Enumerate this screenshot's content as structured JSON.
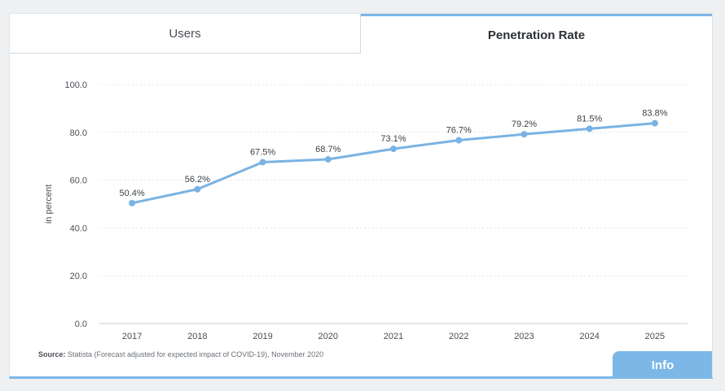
{
  "tabs": {
    "users_label": "Users",
    "penetration_label": "Penetration Rate"
  },
  "source": {
    "label": "Source:",
    "text": " Statista (Forecast adjusted for expected impact of COVID-19), November 2020"
  },
  "info_label": "Info",
  "colors": {
    "accent": "#7cb7e8",
    "line": "#7ab3e3",
    "grid": "#e3e6ea",
    "axis": "#c9ced4",
    "text": "#4a4f55"
  },
  "chart_data": {
    "type": "line",
    "title": "",
    "xlabel": "",
    "ylabel": "in percent",
    "ylim": [
      0,
      100
    ],
    "yticks": [
      "0.0",
      "20.0",
      "40.0",
      "60.0",
      "80.0",
      "100.0"
    ],
    "grid": true,
    "categories": [
      "2017",
      "2018",
      "2019",
      "2020",
      "2021",
      "2022",
      "2023",
      "2024",
      "2025"
    ],
    "series": [
      {
        "values": [
          50.4,
          56.2,
          67.5,
          68.7,
          73.1,
          76.7,
          79.2,
          81.5,
          83.8
        ],
        "labels": [
          "50.4%",
          "56.2%",
          "67.5%",
          "68.7%",
          "73.1%",
          "76.7%",
          "79.2%",
          "81.5%",
          "83.8%"
        ]
      }
    ]
  }
}
